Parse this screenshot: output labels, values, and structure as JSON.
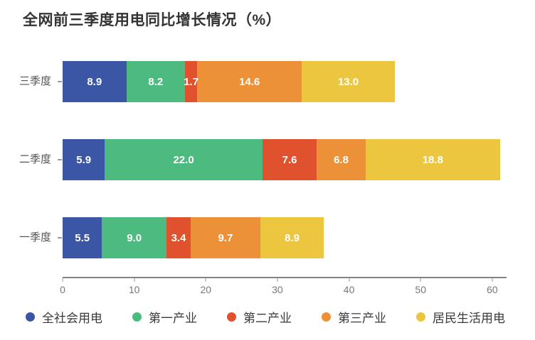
{
  "title": "全网前三季度用电同比增长情况（%）",
  "chart_data": {
    "type": "bar",
    "orientation": "horizontal",
    "stacked": true,
    "title": "全网前三季度用电同比增长情况（%）",
    "categories": [
      "三季度",
      "二季度",
      "一季度"
    ],
    "series": [
      {
        "name": "全社会用电",
        "color": "#3C56A6",
        "values": [
          8.9,
          5.9,
          5.5
        ]
      },
      {
        "name": "第一产业",
        "color": "#4DBA7F",
        "values": [
          8.2,
          22.0,
          9.0
        ]
      },
      {
        "name": "第二产业",
        "color": "#E0512D",
        "values": [
          1.7,
          7.6,
          3.4
        ]
      },
      {
        "name": "第三产业",
        "color": "#EC9138",
        "values": [
          14.6,
          6.8,
          9.7
        ]
      },
      {
        "name": "居民生活用电",
        "color": "#EDC63F",
        "values": [
          13.0,
          18.8,
          8.9
        ]
      }
    ],
    "xticks": [
      0,
      10,
      20,
      30,
      40,
      50,
      60
    ],
    "xmax": 62,
    "xlabel": "",
    "ylabel": "",
    "value_labels": true,
    "grid": false,
    "legend_position": "bottom"
  }
}
